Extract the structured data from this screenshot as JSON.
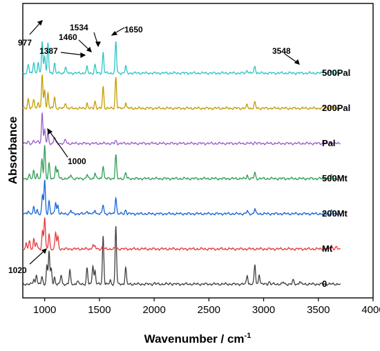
{
  "chart_data": {
    "type": "line",
    "title": "",
    "xlabel": "Wavenumber / cm",
    "xlabel_superscript": "-1",
    "ylabel": "Absorbance",
    "xlim": [
      800,
      4000
    ],
    "x_ticks": [
      1000,
      1500,
      2000,
      2500,
      3000,
      3500,
      4000
    ],
    "y_ticks_shown": false,
    "grid": false,
    "legend": "none",
    "data_range": [
      800,
      3700
    ],
    "series": [
      {
        "name": "0",
        "color": "#3f3f3f",
        "offset": 0,
        "peaks": [
          [
            900,
            0.15
          ],
          [
            925,
            0.3
          ],
          [
            975,
            0.22
          ],
          [
            1020,
            0.55
          ],
          [
            1040,
            1.0
          ],
          [
            1060,
            0.45
          ],
          [
            1090,
            0.2
          ],
          [
            1150,
            0.28
          ],
          [
            1230,
            0.42
          ],
          [
            1300,
            0.1
          ],
          [
            1387,
            0.48
          ],
          [
            1440,
            0.58
          ],
          [
            1460,
            0.4
          ],
          [
            1534,
            1.45
          ],
          [
            1600,
            0.1
          ],
          [
            1650,
            1.75
          ],
          [
            1740,
            0.5
          ],
          [
            2000,
            0.03
          ],
          [
            2150,
            0.03
          ],
          [
            2850,
            0.28
          ],
          [
            2920,
            0.58
          ],
          [
            2960,
            0.3
          ],
          [
            3050,
            0.08
          ],
          [
            3180,
            0.06
          ],
          [
            3270,
            0.12
          ],
          [
            3330,
            0.08
          ]
        ]
      },
      {
        "name": "Mt",
        "color": "#e8363a",
        "offset": 1,
        "peaks": [
          [
            830,
            0.15
          ],
          [
            860,
            0.25
          ],
          [
            900,
            0.3
          ],
          [
            925,
            0.2
          ],
          [
            980,
            0.55
          ],
          [
            1000,
            0.95
          ],
          [
            1040,
            0.45
          ],
          [
            1100,
            0.5
          ],
          [
            1120,
            0.35
          ],
          [
            1440,
            0.12
          ],
          [
            1460,
            0.08
          ],
          [
            1530,
            0.08
          ],
          [
            1650,
            0.08
          ],
          [
            3620,
            0.12
          ],
          [
            3660,
            0.06
          ]
        ]
      },
      {
        "name": "200Mt",
        "color": "#1565d8",
        "offset": 2,
        "peaks": [
          [
            850,
            0.1
          ],
          [
            900,
            0.18
          ],
          [
            930,
            0.12
          ],
          [
            980,
            0.55
          ],
          [
            1000,
            1.0
          ],
          [
            1040,
            0.4
          ],
          [
            1100,
            0.35
          ],
          [
            1120,
            0.25
          ],
          [
            1240,
            0.1
          ],
          [
            1387,
            0.1
          ],
          [
            1460,
            0.12
          ],
          [
            1534,
            0.28
          ],
          [
            1650,
            0.5
          ],
          [
            1740,
            0.12
          ],
          [
            2850,
            0.08
          ],
          [
            2920,
            0.15
          ],
          [
            3620,
            0.1
          ]
        ]
      },
      {
        "name": "500Mt",
        "color": "#2f9d55",
        "offset": 3,
        "peaks": [
          [
            860,
            0.1
          ],
          [
            900,
            0.25
          ],
          [
            930,
            0.12
          ],
          [
            975,
            0.6
          ],
          [
            1000,
            1.0
          ],
          [
            1040,
            0.45
          ],
          [
            1100,
            0.38
          ],
          [
            1120,
            0.25
          ],
          [
            1240,
            0.12
          ],
          [
            1387,
            0.12
          ],
          [
            1460,
            0.18
          ],
          [
            1534,
            0.4
          ],
          [
            1650,
            0.72
          ],
          [
            1740,
            0.18
          ],
          [
            2850,
            0.1
          ],
          [
            2920,
            0.18
          ],
          [
            3620,
            0.1
          ]
        ]
      },
      {
        "name": "Pal",
        "color": "#9a5fc6",
        "offset": 4,
        "peaks": [
          [
            850,
            0.05
          ],
          [
            900,
            0.1
          ],
          [
            940,
            0.1
          ],
          [
            977,
            0.95
          ],
          [
            1000,
            0.4
          ],
          [
            1030,
            0.3
          ],
          [
            1090,
            0.2
          ],
          [
            1190,
            0.12
          ],
          [
            1650,
            0.08
          ],
          [
            2920,
            0.04
          ],
          [
            3548,
            0.06
          ],
          [
            3620,
            0.06
          ]
        ]
      },
      {
        "name": "200Pal",
        "color": "#c49c00",
        "offset": 5,
        "peaks": [
          [
            850,
            0.3
          ],
          [
            900,
            0.28
          ],
          [
            940,
            0.2
          ],
          [
            977,
            1.0
          ],
          [
            1000,
            0.55
          ],
          [
            1030,
            0.45
          ],
          [
            1090,
            0.35
          ],
          [
            1190,
            0.18
          ],
          [
            1387,
            0.15
          ],
          [
            1460,
            0.22
          ],
          [
            1534,
            0.65
          ],
          [
            1650,
            0.95
          ],
          [
            1740,
            0.18
          ],
          [
            2850,
            0.1
          ],
          [
            2920,
            0.18
          ],
          [
            3548,
            0.08
          ],
          [
            3620,
            0.08
          ]
        ]
      },
      {
        "name": "500Pal",
        "color": "#2ec4c4",
        "offset": 6,
        "peaks": [
          [
            850,
            0.25
          ],
          [
            900,
            0.35
          ],
          [
            940,
            0.3
          ],
          [
            977,
            0.95
          ],
          [
            1000,
            0.55
          ],
          [
            1030,
            0.9
          ],
          [
            1090,
            0.3
          ],
          [
            1190,
            0.2
          ],
          [
            1387,
            0.18
          ],
          [
            1460,
            0.25
          ],
          [
            1534,
            0.62
          ],
          [
            1650,
            0.95
          ],
          [
            1740,
            0.2
          ],
          [
            2850,
            0.1
          ],
          [
            2920,
            0.22
          ],
          [
            3548,
            0.08
          ],
          [
            3620,
            0.08
          ]
        ]
      }
    ],
    "annotations": [
      "977",
      "1387",
      "1460",
      "1534",
      "1650",
      "3548",
      "1000",
      "1020"
    ]
  }
}
